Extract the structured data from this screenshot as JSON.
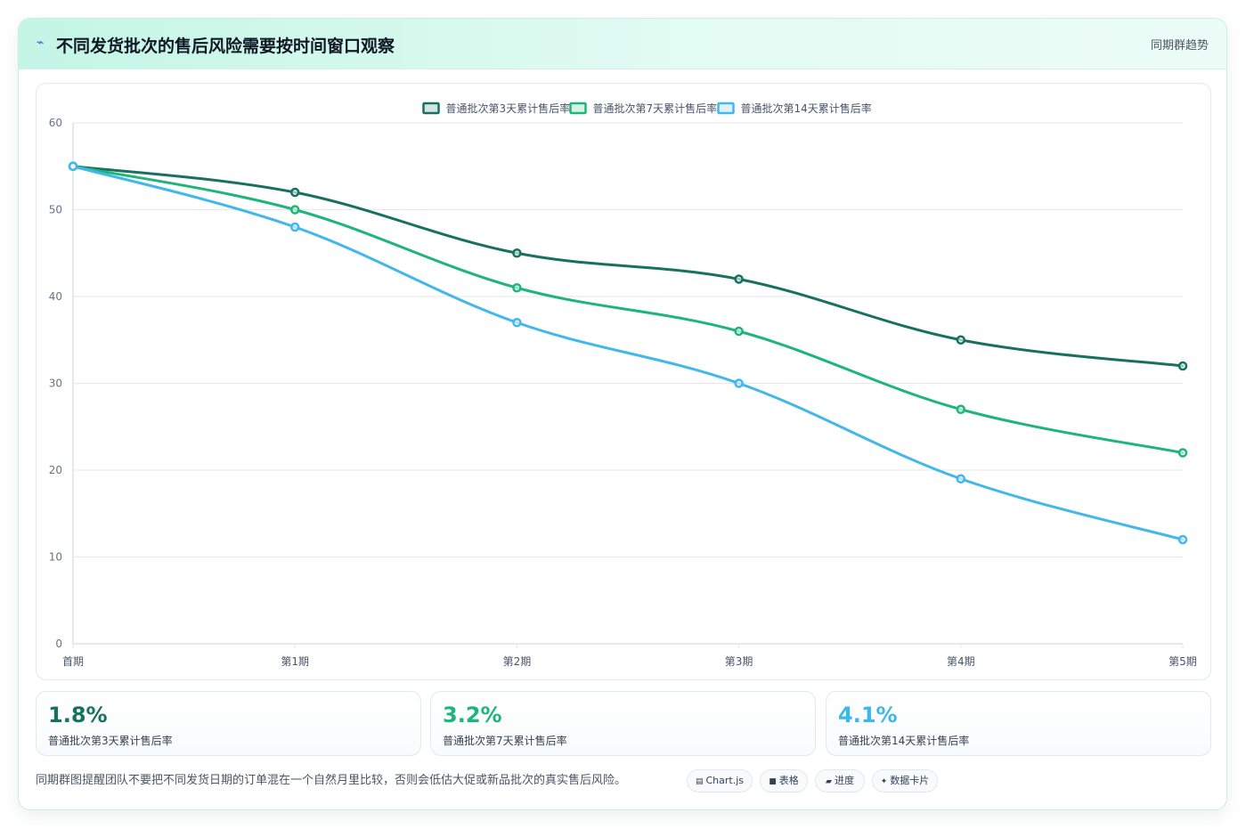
{
  "header": {
    "icon": "lightning-icon",
    "title": "不同发货批次的售后风险需要按时间窗口观察",
    "tag": "同期群趋势"
  },
  "chart_data": {
    "type": "line",
    "categories": [
      "首期",
      "第1期",
      "第2期",
      "第3期",
      "第4期",
      "第5期"
    ],
    "ylim": [
      0,
      60
    ],
    "yticks": [
      0,
      10,
      20,
      30,
      40,
      50,
      60
    ],
    "grid": true,
    "legend_position": "top-center",
    "series": [
      {
        "name": "普通批次第3天累计售后率",
        "color": "#17715f",
        "values": [
          55,
          52,
          45,
          42,
          35,
          32
        ]
      },
      {
        "name": "普通批次第7天累计售后率",
        "color": "#1db57a",
        "values": [
          55,
          50,
          41,
          36,
          27,
          22
        ]
      },
      {
        "name": "普通批次第14天累计售后率",
        "color": "#42b7ec",
        "values": [
          55,
          48,
          37,
          30,
          19,
          12
        ]
      }
    ]
  },
  "stats": [
    {
      "value": "1.8%",
      "label": "普通批次第3天累计售后率",
      "color": "#17715f"
    },
    {
      "value": "3.2%",
      "label": "普通批次第7天累计售后率",
      "color": "#1db57a"
    },
    {
      "value": "4.1%",
      "label": "普通批次第14天累计售后率",
      "color": "#3bb8ea"
    }
  ],
  "footer": {
    "note": "同期群图提醒团队不要把不同发货日期的订单混在一个自然月里比较，否则会低估大促或新品批次的真实售后风险。",
    "chips": [
      {
        "icon": "chart-icon",
        "glyph": "▤",
        "label": "Chart.js"
      },
      {
        "icon": "table-icon",
        "glyph": "■",
        "label": "表格"
      },
      {
        "icon": "progress-icon",
        "glyph": "▰",
        "label": "进度"
      },
      {
        "icon": "data-card-icon",
        "glyph": "✦",
        "label": "数据卡片"
      }
    ]
  }
}
